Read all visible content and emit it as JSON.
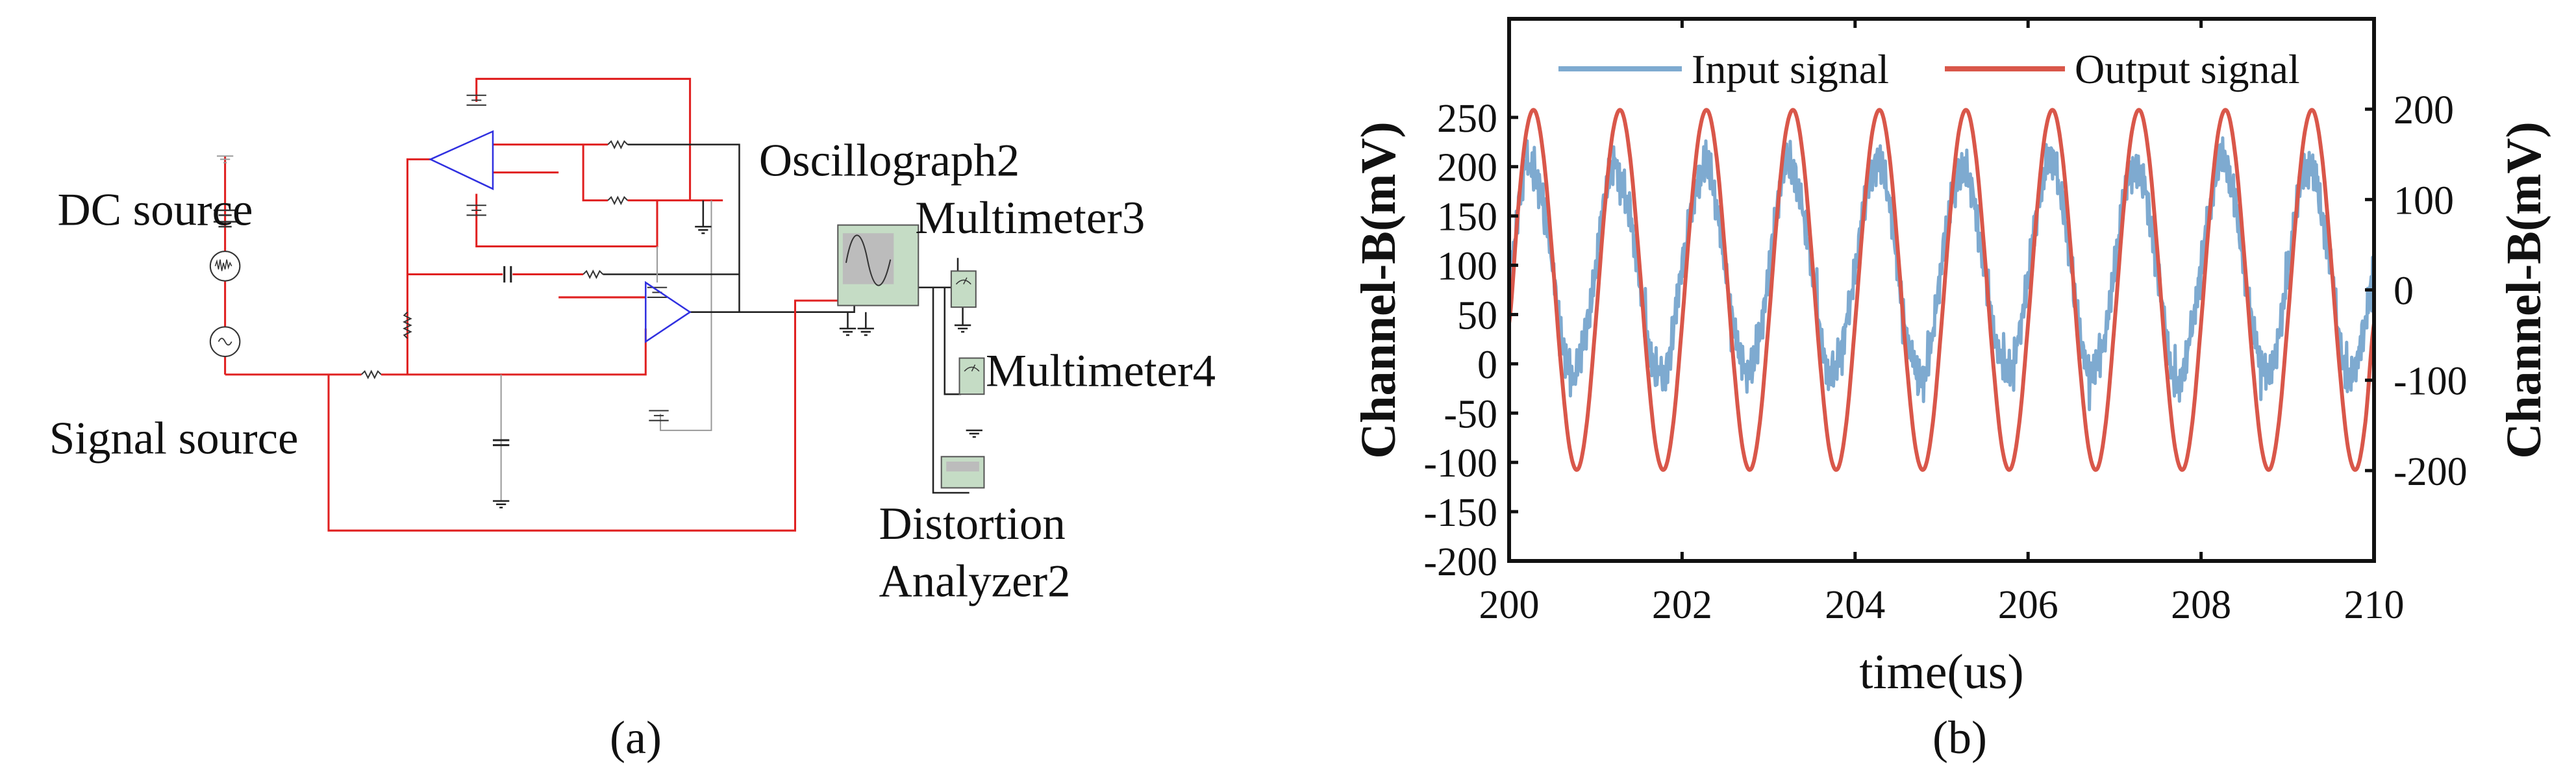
{
  "panel_a": {
    "caption": "(a)",
    "labels": {
      "dc_source": "DC source",
      "signal_source": "Signal source",
      "oscillograph": "Oscillograph2",
      "multimeter3": "Multimeter3",
      "multimeter4": "Multimeter4",
      "distortion_line1": "Distortion",
      "distortion_line2": "Analyzer2"
    },
    "colors": {
      "wire_active": "#e02020",
      "wire": "#222222",
      "opamp": "#3030e0",
      "instrument": "#c5dcc5"
    }
  },
  "panel_b": {
    "caption": "(b)"
  },
  "chart_data": {
    "type": "line",
    "xlabel": "time(us)",
    "ylabel_left": "Channel-B(mV)",
    "ylabel_right": "Channel-B(mV)",
    "xlim": [
      200,
      210
    ],
    "ylim_left": [
      -200,
      350
    ],
    "ylim_right": [
      -300,
      300
    ],
    "x_ticks": [
      "200",
      "202",
      "204",
      "206",
      "208",
      "210"
    ],
    "y_ticks_left": [
      "250",
      "200",
      "150",
      "100",
      "50",
      "0",
      "-50",
      "-100",
      "-150",
      "-200"
    ],
    "y_ticks_right": [
      "200",
      "100",
      "0",
      "-100",
      "-200"
    ],
    "grid": false,
    "legend_placement": "top",
    "x_step": 0.1,
    "series": [
      {
        "name": "Input signal",
        "axis": "left",
        "color": "#7eaad0",
        "values": [
          80,
          150,
          205,
          190,
          160,
          100,
          30,
          -10,
          0,
          40,
          95,
          165,
          200,
          185,
          150,
          90,
          25,
          -5,
          -10,
          35,
          100,
          150,
          190,
          200,
          160,
          95,
          35,
          0,
          -5,
          30,
          90,
          160,
          205,
          195,
          150,
          100,
          30,
          -10,
          5,
          40,
          95,
          155,
          195,
          200,
          165,
          90,
          25,
          -5,
          -15,
          35,
          100,
          160,
          190,
          195,
          150,
          95,
          35,
          5,
          -5,
          30,
          90,
          150,
          200,
          205,
          160,
          100,
          30,
          -10,
          0,
          35,
          95,
          165,
          195,
          190,
          155,
          90,
          30,
          -20,
          -5,
          40,
          100,
          155,
          205,
          200,
          160,
          95,
          35,
          0,
          -10,
          30,
          90,
          160,
          195,
          195,
          150,
          100,
          25,
          -15,
          5,
          40,
          100
        ]
      },
      {
        "name": "Output signal",
        "axis": "right",
        "color": "#d9574a",
        "values": [
          -37,
          85,
          175,
          198,
          146,
          37,
          -85,
          -175,
          -198,
          -146,
          -37,
          85,
          175,
          198,
          146,
          37,
          -85,
          -175,
          -198,
          -146,
          -37,
          85,
          175,
          198,
          146,
          37,
          -85,
          -175,
          -198,
          -146,
          -37,
          85,
          175,
          198,
          146,
          37,
          -85,
          -175,
          -198,
          -146,
          -37,
          85,
          175,
          198,
          146,
          37,
          -85,
          -175,
          -198,
          -146,
          -37,
          85,
          175,
          198,
          146,
          37,
          -85,
          -175,
          -198,
          -146,
          -37,
          85,
          175,
          198,
          146,
          37,
          -85,
          -175,
          -198,
          -146,
          -37,
          85,
          175,
          198,
          146,
          37,
          -85,
          -175,
          -198,
          -146,
          -37,
          85,
          175,
          198,
          146,
          37,
          -85,
          -175,
          -198,
          -146,
          -37,
          85,
          175,
          198,
          146,
          37,
          -85,
          -175,
          -198,
          -146,
          -37
        ]
      }
    ]
  }
}
